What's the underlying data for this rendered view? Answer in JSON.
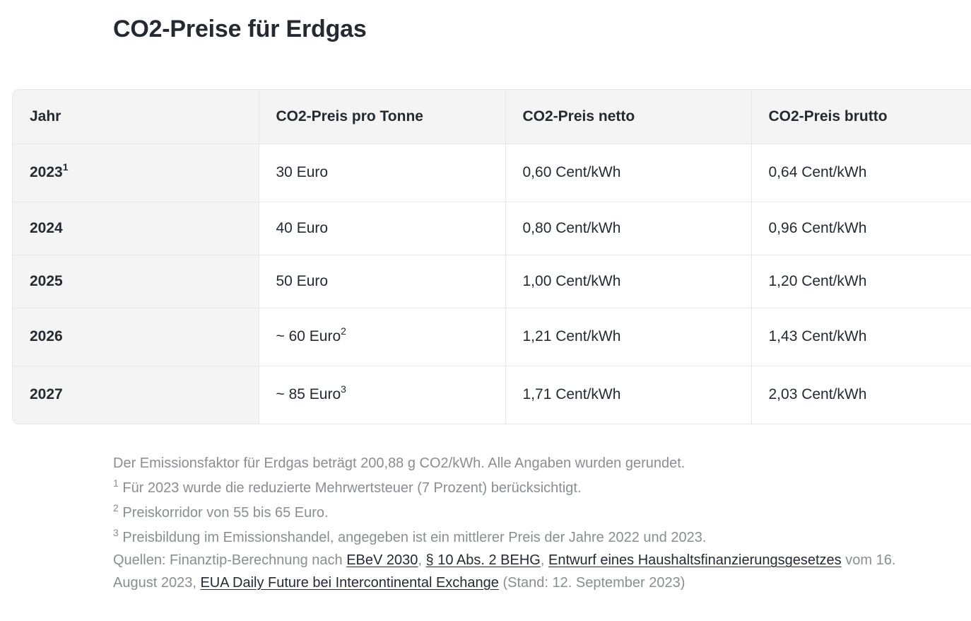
{
  "title": "CO2-Preise für Erdgas",
  "table": {
    "headers": [
      "Jahr",
      "CO2-Preis pro Tonne",
      "CO2-Preis netto",
      "CO2-Preis brutto"
    ],
    "rows": [
      {
        "year": "2023",
        "year_sup": "1",
        "price_per_ton": "30 Euro",
        "price_sup": "",
        "net": "0,60 Cent/kWh",
        "gross": "0,64 Cent/kWh"
      },
      {
        "year": "2024",
        "year_sup": "",
        "price_per_ton": "40 Euro",
        "price_sup": "",
        "net": "0,80 Cent/kWh",
        "gross": "0,96 Cent/kWh"
      },
      {
        "year": "2025",
        "year_sup": "",
        "price_per_ton": "50 Euro",
        "price_sup": "",
        "net": "1,00 Cent/kWh",
        "gross": "1,20 Cent/kWh"
      },
      {
        "year": "2026",
        "year_sup": "",
        "price_per_ton": "~ 60 Euro",
        "price_sup": "2",
        "net": "1,21 Cent/kWh",
        "gross": "1,43 Cent/kWh"
      },
      {
        "year": "2027",
        "year_sup": "",
        "price_per_ton": "~ 85 Euro",
        "price_sup": "3",
        "net": "1,71 Cent/kWh",
        "gross": "2,03 Cent/kWh"
      }
    ]
  },
  "notes": {
    "intro": "Der Emissionsfaktor für Erdgas beträgt 200,88 g CO2/kWh. Alle Angaben wurden gerundet.",
    "footnotes": [
      {
        "mark": "1",
        "text": " Für 2023 wurde die reduzierte Mehrwertsteuer (7 Prozent) berücksichtigt."
      },
      {
        "mark": "2",
        "text": " Preiskorridor von 55 bis 65 Euro."
      },
      {
        "mark": "3",
        "text": " Preisbildung im Emissionshandel, angegeben ist ein mittlerer Preis der Jahre 2022 und 2023."
      }
    ],
    "sources": {
      "prefix": "Quellen: Finanztip-Berechnung nach ",
      "link1": "EBeV 2030",
      "sep1": ", ",
      "link2": "§ 10 Abs. 2 BEHG",
      "sep2": ", ",
      "link3": "Entwurf eines Haushaltsfinanzierungsgesetzes",
      "mid": " vom 16. August 2023, ",
      "link4": "EUA Daily Future bei Intercontinental Exchange",
      "suffix": " (Stand: 12. September 2023)"
    }
  }
}
